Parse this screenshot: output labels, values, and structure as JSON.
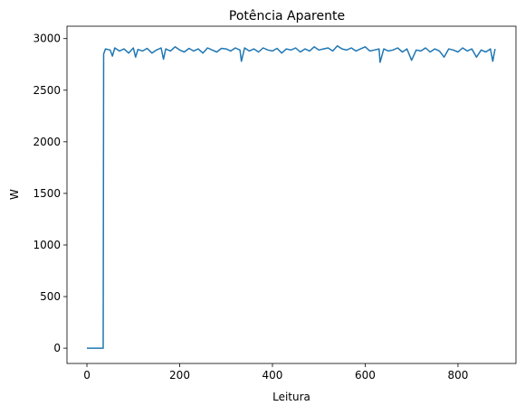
{
  "chart_data": {
    "type": "line",
    "title": "Potência Aparente",
    "xlabel": "Leitura",
    "ylabel": "W",
    "xlim": [
      -43,
      925
    ],
    "ylim": [
      -148,
      3120
    ],
    "xticks": [
      0,
      200,
      400,
      600,
      800
    ],
    "yticks": [
      0,
      500,
      1000,
      1500,
      2000,
      2500,
      3000
    ],
    "xtick_labels": [
      "0",
      "200",
      "400",
      "600",
      "800"
    ],
    "ytick_labels": [
      "0",
      "500",
      "1000",
      "1500",
      "2000",
      "2500",
      "3000"
    ],
    "grid": false,
    "series": [
      {
        "color": "#1f77b4",
        "x": [
          0,
          10,
          20,
          30,
          35,
          36,
          40,
          50,
          55,
          60,
          70,
          80,
          90,
          100,
          105,
          110,
          120,
          130,
          140,
          150,
          160,
          165,
          170,
          180,
          190,
          200,
          210,
          220,
          230,
          240,
          250,
          260,
          270,
          280,
          290,
          300,
          310,
          320,
          330,
          333,
          340,
          350,
          360,
          370,
          380,
          390,
          400,
          410,
          420,
          430,
          440,
          450,
          460,
          470,
          480,
          490,
          500,
          510,
          520,
          530,
          540,
          550,
          560,
          570,
          580,
          590,
          600,
          610,
          620,
          630,
          632,
          640,
          650,
          660,
          670,
          680,
          690,
          700,
          710,
          720,
          730,
          740,
          750,
          760,
          770,
          780,
          790,
          800,
          810,
          820,
          830,
          840,
          850,
          860,
          870,
          875,
          880
        ],
        "y": [
          0,
          0,
          0,
          0,
          0,
          2850,
          2900,
          2890,
          2830,
          2910,
          2880,
          2900,
          2860,
          2910,
          2820,
          2895,
          2880,
          2905,
          2860,
          2890,
          2910,
          2800,
          2900,
          2880,
          2920,
          2890,
          2870,
          2905,
          2880,
          2900,
          2860,
          2910,
          2890,
          2870,
          2905,
          2900,
          2880,
          2910,
          2890,
          2780,
          2910,
          2880,
          2900,
          2870,
          2910,
          2890,
          2880,
          2905,
          2860,
          2900,
          2890,
          2910,
          2870,
          2900,
          2880,
          2920,
          2890,
          2900,
          2910,
          2880,
          2930,
          2900,
          2890,
          2910,
          2880,
          2900,
          2920,
          2880,
          2890,
          2900,
          2770,
          2900,
          2880,
          2890,
          2910,
          2870,
          2900,
          2790,
          2890,
          2880,
          2910,
          2870,
          2900,
          2880,
          2820,
          2900,
          2890,
          2870,
          2910,
          2880,
          2900,
          2820,
          2890,
          2870,
          2900,
          2780,
          2900
        ]
      }
    ]
  }
}
